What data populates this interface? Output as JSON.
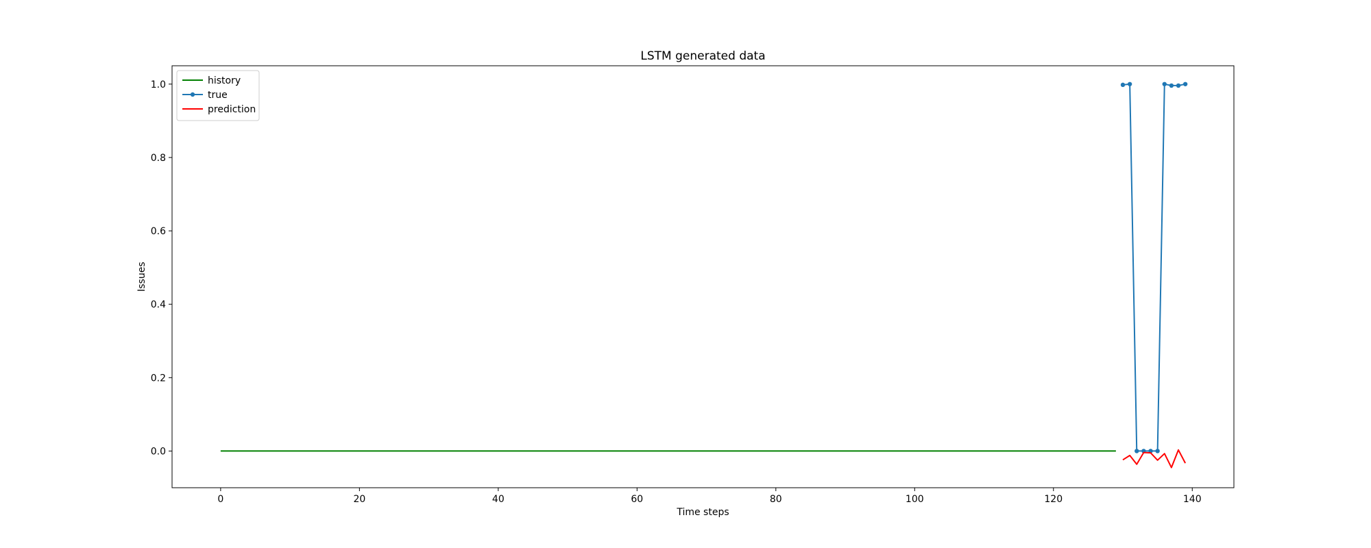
{
  "chart_data": {
    "type": "line",
    "title": "LSTM generated data",
    "xlabel": "Time steps",
    "ylabel": "Issues",
    "xlim": [
      -7,
      146
    ],
    "ylim": [
      -0.1,
      1.05
    ],
    "xticks": [
      0,
      20,
      40,
      60,
      80,
      100,
      120,
      140
    ],
    "yticks": [
      0.0,
      0.2,
      0.4,
      0.6,
      0.8,
      1.0
    ],
    "xtick_labels": [
      "0",
      "20",
      "40",
      "60",
      "80",
      "100",
      "120",
      "140"
    ],
    "ytick_labels": [
      "0.0",
      "0.2",
      "0.4",
      "0.6",
      "0.8",
      "1.0"
    ],
    "grid": false,
    "legend_position": "top-left",
    "series": [
      {
        "name": "history",
        "color": "#008000",
        "marker": false,
        "x": [
          0,
          129
        ],
        "y": [
          0.0,
          0.0
        ]
      },
      {
        "name": "true",
        "color": "#1f77b4",
        "marker": true,
        "x": [
          130,
          131,
          132,
          133,
          134,
          135,
          136,
          137,
          138,
          139
        ],
        "y": [
          0.998,
          1.0,
          0.0,
          0.0,
          0.0,
          0.0,
          1.0,
          0.996,
          0.996,
          1.0
        ]
      },
      {
        "name": "prediction",
        "color": "#ff0000",
        "marker": false,
        "x": [
          130,
          131,
          132,
          133,
          134,
          135,
          136,
          137,
          138,
          139
        ],
        "y": [
          -0.024,
          -0.012,
          -0.036,
          -0.004,
          -0.005,
          -0.025,
          -0.007,
          -0.045,
          0.003,
          -0.033
        ]
      }
    ]
  }
}
